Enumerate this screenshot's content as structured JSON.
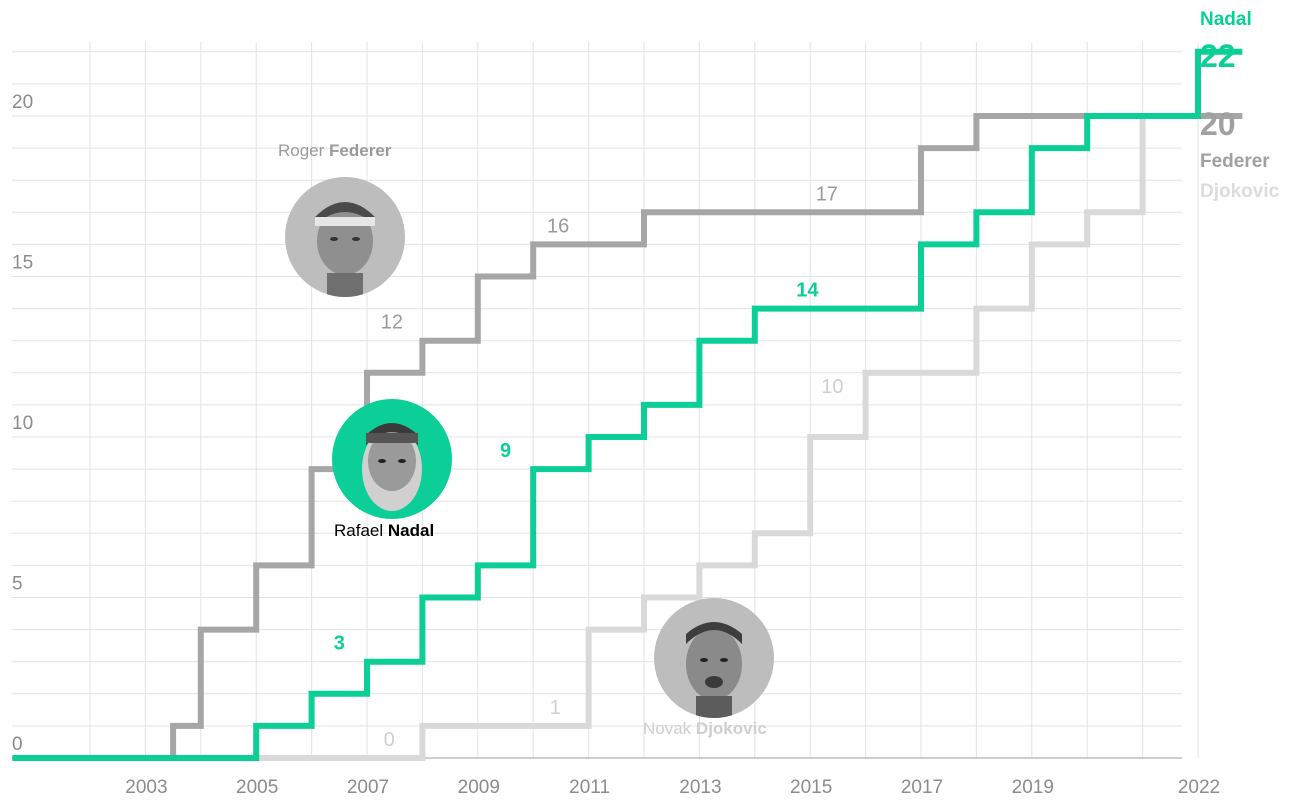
{
  "chart_data": {
    "type": "line",
    "subtype": "step",
    "x_ticks": [
      "2003",
      "2005",
      "2007",
      "2009",
      "2011",
      "2013",
      "2015",
      "2017",
      "2019",
      "2022"
    ],
    "y_ticks": [
      "0",
      "5",
      "10",
      "15",
      "20"
    ],
    "ylim": [
      0,
      22
    ],
    "grid": true,
    "series": [
      {
        "name": "Federer",
        "color": "#a6a6a6",
        "steps": [
          {
            "t": 2002.0,
            "v": 0
          },
          {
            "t": 2003.5,
            "v": 1
          },
          {
            "t": 2004.0,
            "v": 4
          },
          {
            "t": 2005.0,
            "v": 6
          },
          {
            "t": 2006.0,
            "v": 9
          },
          {
            "t": 2007.0,
            "v": 12
          },
          {
            "t": 2008.0,
            "v": 13
          },
          {
            "t": 2009.0,
            "v": 15
          },
          {
            "t": 2010.0,
            "v": 16
          },
          {
            "t": 2012.0,
            "v": 17
          },
          {
            "t": 2017.0,
            "v": 19
          },
          {
            "t": 2018.0,
            "v": 20
          },
          {
            "t": 2022.8,
            "v": 20
          }
        ]
      },
      {
        "name": "Nadal",
        "color": "#0ccf97",
        "steps": [
          {
            "t": 2001.5,
            "v": 0
          },
          {
            "t": 2005.0,
            "v": 1
          },
          {
            "t": 2006.0,
            "v": 2
          },
          {
            "t": 2007.0,
            "v": 3
          },
          {
            "t": 2008.0,
            "v": 5
          },
          {
            "t": 2009.0,
            "v": 6
          },
          {
            "t": 2010.0,
            "v": 9
          },
          {
            "t": 2011.0,
            "v": 10
          },
          {
            "t": 2012.0,
            "v": 11
          },
          {
            "t": 2013.0,
            "v": 13
          },
          {
            "t": 2014.0,
            "v": 14
          },
          {
            "t": 2017.0,
            "v": 16
          },
          {
            "t": 2018.0,
            "v": 17
          },
          {
            "t": 2019.0,
            "v": 19
          },
          {
            "t": 2020.0,
            "v": 20
          },
          {
            "t": 2022.0,
            "v": 22
          },
          {
            "t": 2022.8,
            "v": 22
          }
        ]
      },
      {
        "name": "Djokovic",
        "color": "#d9d9d9",
        "steps": [
          {
            "t": 2005.0,
            "v": 0
          },
          {
            "t": 2008.0,
            "v": 1
          },
          {
            "t": 2011.0,
            "v": 4
          },
          {
            "t": 2012.0,
            "v": 5
          },
          {
            "t": 2013.0,
            "v": 6
          },
          {
            "t": 2014.0,
            "v": 7
          },
          {
            "t": 2015.0,
            "v": 10
          },
          {
            "t": 2016.0,
            "v": 12
          },
          {
            "t": 2018.0,
            "v": 14
          },
          {
            "t": 2019.0,
            "v": 16
          },
          {
            "t": 2020.0,
            "v": 17
          },
          {
            "t": 2021.0,
            "v": 20
          },
          {
            "t": 2022.8,
            "v": 20
          }
        ]
      }
    ],
    "annotations": [
      {
        "text": "16",
        "series": "Federer",
        "t": 2010.45,
        "v": 16,
        "bold": false
      },
      {
        "text": "12",
        "series": "Federer",
        "t": 2007.45,
        "v": 13,
        "bold": false
      },
      {
        "text": "17",
        "series": "Federer",
        "t": 2015.3,
        "v": 17,
        "bold": false
      },
      {
        "text": "14",
        "series": "Nadal",
        "t": 2014.95,
        "v": 14,
        "bold": true
      },
      {
        "text": "9",
        "series": "Nadal",
        "t": 2009.5,
        "v": 9,
        "bold": true
      },
      {
        "text": "3",
        "series": "Nadal",
        "t": 2006.5,
        "v": 3,
        "bold": true
      },
      {
        "text": "10",
        "series": "Djokovic",
        "t": 2015.4,
        "v": 11,
        "bold": false
      },
      {
        "text": "1",
        "series": "Djokovic",
        "t": 2010.4,
        "v": 1,
        "bold": false
      },
      {
        "text": "0",
        "series": "Djokovic",
        "t": 2007.4,
        "v": 0,
        "bold": false
      }
    ],
    "end_labels": {
      "nadal_name": "Nadal",
      "nadal_value": "22",
      "federer_value": "20",
      "federer_name": "Federer",
      "djokovic_name": "Djokovic"
    }
  },
  "players": {
    "federer": {
      "first": "Roger",
      "last": "Federer",
      "ring_color": "#a6a6a6",
      "icon": "federer-portrait"
    },
    "nadal": {
      "first": "Rafael",
      "last": "Nadal",
      "ring_color": "#0ccf97",
      "icon": "nadal-portrait"
    },
    "djokovic": {
      "first": "Novak",
      "last": "Djokovic",
      "ring_color": "#b5b5b5",
      "icon": "djokovic-portrait"
    }
  }
}
